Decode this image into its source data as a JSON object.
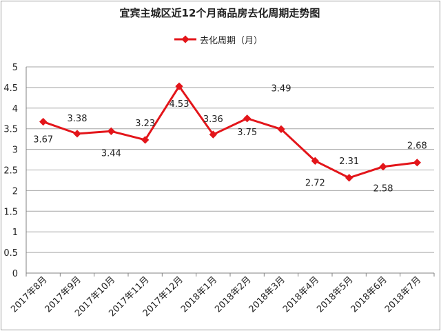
{
  "chart_data": {
    "type": "line",
    "title": "宜宾主城区近12个月商品房去化周期走势图",
    "categories": [
      "2017年8月",
      "2017年9月",
      "2017年10月",
      "2017年11月",
      "2017年12月",
      "2018年1月",
      "2018年2月",
      "2018年3月",
      "2018年4月",
      "2018年5月",
      "2018年6月",
      "2018年7月"
    ],
    "series": [
      {
        "name": "去化周期（月）",
        "values": [
          3.67,
          3.38,
          3.44,
          3.23,
          4.53,
          3.36,
          3.75,
          3.49,
          2.72,
          2.31,
          2.58,
          2.68
        ],
        "color": "#e3151a"
      }
    ],
    "data_labels": [
      "3.67",
      "3.38",
      "3.44",
      "3.23",
      "4.53",
      "3.36",
      "3.75",
      "3.49",
      "2.72",
      "2.31",
      "2.58",
      "2.68"
    ],
    "ylim": [
      0,
      5
    ],
    "yticks": [
      "0",
      "0.5",
      "1",
      "1.5",
      "2",
      "2.5",
      "3",
      "3.5",
      "4",
      "4.5",
      "5"
    ],
    "grid": "horizontal",
    "legend": "top"
  }
}
